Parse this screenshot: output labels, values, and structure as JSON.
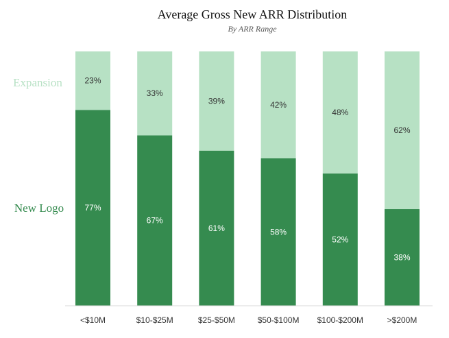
{
  "chart_data": {
    "type": "bar",
    "stacked": true,
    "title": "Average Gross New ARR Distribution",
    "subtitle": "By ARR Range",
    "categories": [
      "<$10M",
      "$10-$25M",
      "$25-$50M",
      "$50-$100M",
      "$100-$200M",
      ">$200M"
    ],
    "series": [
      {
        "name": "New Logo",
        "color": "#358b4f",
        "label_color": "#ffffff",
        "values": [
          77,
          67,
          61,
          58,
          52,
          38
        ],
        "labels": [
          "77%",
          "67%",
          "61%",
          "58%",
          "52%",
          "38%"
        ]
      },
      {
        "name": "Expansion",
        "color": "#b7e1c4",
        "label_color": "#333333",
        "values": [
          23,
          33,
          39,
          42,
          48,
          62
        ],
        "labels": [
          "23%",
          "33%",
          "39%",
          "42%",
          "48%",
          "62%"
        ]
      }
    ],
    "ylim": [
      0,
      100
    ],
    "xlabel": "",
    "ylabel": "",
    "grid": false,
    "legend_position": "left"
  }
}
